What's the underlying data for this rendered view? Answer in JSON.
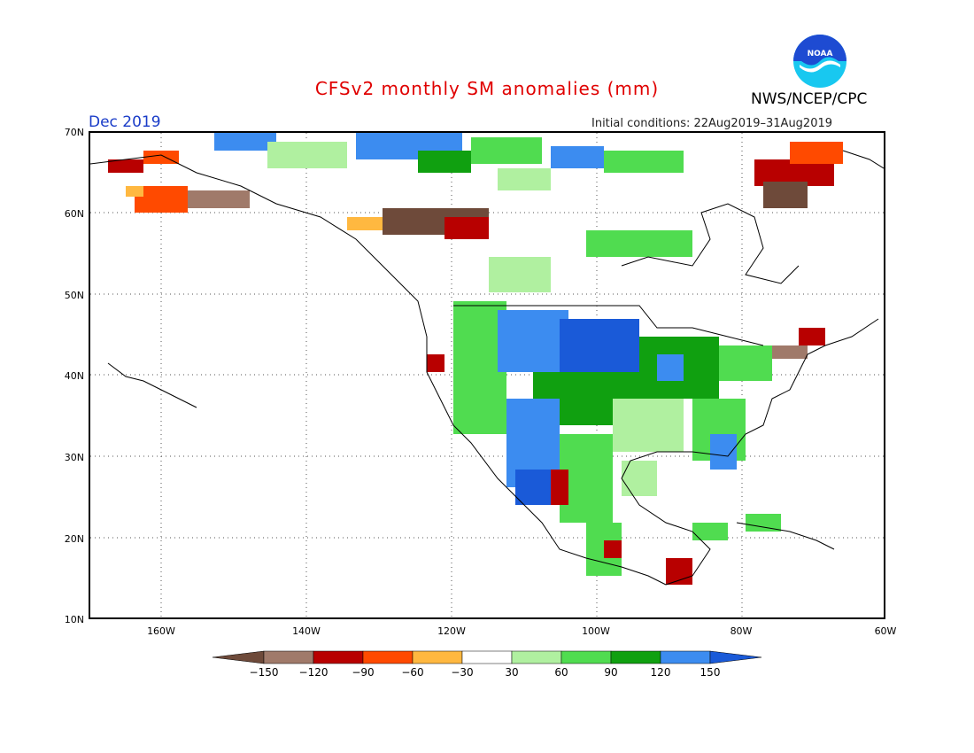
{
  "title": "CFSv2 monthly SM anomalies (mm)",
  "month": "Dec 2019",
  "initial_conditions": "Initial conditions: 22Aug2019–31Aug2019",
  "agency": "NWS/NCEP/CPC",
  "logo_text": "NOAA",
  "map": {
    "lat_labels": [
      "70N",
      "60N",
      "50N",
      "40N",
      "30N",
      "20N",
      "10N"
    ],
    "lon_labels": [
      "160W",
      "140W",
      "120W",
      "100W",
      "80W",
      "60W"
    ],
    "lat_range": [
      10,
      70
    ],
    "lon_range": [
      -170,
      -60
    ]
  },
  "legend": {
    "labels": [
      "−150",
      "−120",
      "−90",
      "−60",
      "−30",
      "30",
      "60",
      "90",
      "120",
      "150"
    ],
    "colors": [
      "#6e4a3a",
      "#a07a6a",
      "#b80000",
      "#ff4a00",
      "#ffb840",
      "#ffffff",
      "#b0f0a0",
      "#50dc50",
      "#10a010",
      "#3c8cf0",
      "#1a5ad8"
    ]
  },
  "colors": {
    "title": "#e00000",
    "month": "#1a3cc8",
    "logo_blue": "#1e4bd2",
    "logo_cyan": "#18c8f0"
  }
}
